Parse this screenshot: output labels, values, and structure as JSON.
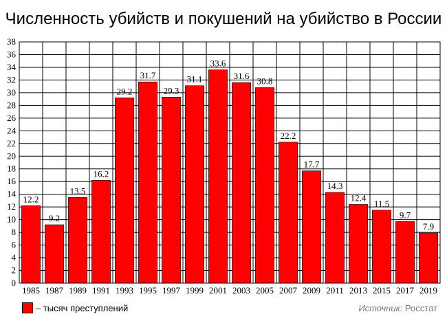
{
  "chart_data": {
    "type": "bar",
    "title": "Численность убийств и покушений на убийство в России",
    "xlabel": "",
    "ylabel": "",
    "ylim": [
      0,
      38
    ],
    "yticks": [
      0,
      2,
      4,
      6,
      8,
      10,
      12,
      14,
      16,
      18,
      20,
      22,
      24,
      26,
      28,
      30,
      32,
      34,
      36,
      38
    ],
    "grid": true,
    "categories": [
      "1985",
      "1987",
      "1989",
      "1991",
      "1993",
      "1995",
      "1997",
      "1999",
      "2001",
      "2003",
      "2005",
      "2007",
      "2009",
      "2011",
      "2013",
      "2015",
      "2017",
      "2019"
    ],
    "values": [
      12.2,
      9.2,
      13.5,
      16.2,
      29.2,
      31.7,
      29.3,
      31.1,
      33.6,
      31.6,
      30.8,
      22.2,
      17.7,
      14.3,
      12.4,
      11.5,
      9.7,
      7.9
    ],
    "bar_color": "#ff0000",
    "legend": "– тысяч преступлений",
    "source_label": "Источник:",
    "source_value": "Росстат"
  }
}
